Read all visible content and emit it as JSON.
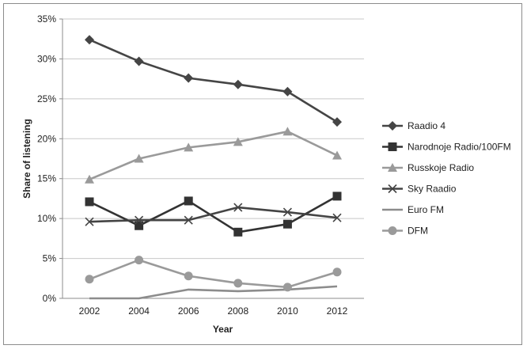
{
  "chart_data": {
    "type": "line",
    "xlabel": "Year",
    "ylabel": "Share of listening",
    "x": [
      2002,
      2004,
      2006,
      2008,
      2010,
      2012
    ],
    "x_tick_labels": [
      "2002",
      "2004",
      "2006",
      "2008",
      "2010",
      "2012"
    ],
    "ylim": [
      0,
      35
    ],
    "y_ticks": [
      0,
      5,
      10,
      15,
      20,
      25,
      30,
      35
    ],
    "y_tick_labels": [
      "0%",
      "5%",
      "10%",
      "15%",
      "20%",
      "25%",
      "30%",
      "35%"
    ],
    "grid": "horizontal",
    "legend_position": "right",
    "series": [
      {
        "name": "Raadio 4",
        "values": [
          32.4,
          29.7,
          27.6,
          26.8,
          25.9,
          22.1
        ],
        "color": "#454545",
        "marker": "diamond"
      },
      {
        "name": "Narodnoje Radio/100FM",
        "values": [
          12.1,
          9.1,
          12.2,
          8.3,
          9.3,
          12.8
        ],
        "color": "#333333",
        "marker": "square"
      },
      {
        "name": "Russkoje Radio",
        "values": [
          14.9,
          17.5,
          18.9,
          19.6,
          20.9,
          17.9
        ],
        "color": "#9a9a9a",
        "marker": "triangle"
      },
      {
        "name": "Sky Raadio",
        "values": [
          9.6,
          9.8,
          9.8,
          11.4,
          10.8,
          10.1
        ],
        "color": "#444444",
        "marker": "x"
      },
      {
        "name": "Euro FM",
        "values": [
          0,
          0,
          1.1,
          0.9,
          1.1,
          1.5
        ],
        "color": "#8c8c8c",
        "marker": "none"
      },
      {
        "name": "DFM",
        "values": [
          2.4,
          4.8,
          2.8,
          1.9,
          1.4,
          3.3
        ],
        "color": "#9a9a9a",
        "marker": "circle"
      }
    ]
  }
}
